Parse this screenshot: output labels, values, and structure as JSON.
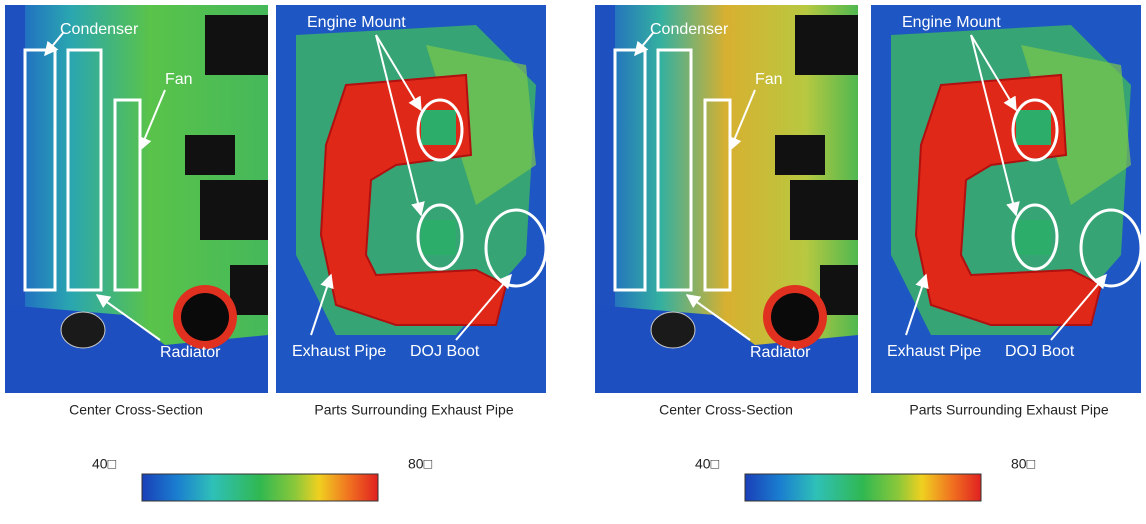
{
  "panels": [
    {
      "images": [
        {
          "caption": "Center Cross-Section",
          "labels": [
            "Condenser",
            "Fan",
            "Radiator"
          ]
        },
        {
          "caption": "Parts Surrounding Exhaust Pipe",
          "labels": [
            "Engine Mount",
            "Exhaust Pipe",
            "DOJ Boot"
          ]
        }
      ],
      "colorbar": {
        "min_label": "40□",
        "max_label": "80□"
      }
    },
    {
      "images": [
        {
          "caption": "Center Cross-Section",
          "labels": [
            "Condenser",
            "Fan",
            "Radiator"
          ]
        },
        {
          "caption": "Parts Surrounding Exhaust Pipe",
          "labels": [
            "Engine Mount",
            "Exhaust Pipe",
            "DOJ Boot"
          ]
        }
      ],
      "colorbar": {
        "min_label": "40□",
        "max_label": "80□"
      }
    }
  ]
}
